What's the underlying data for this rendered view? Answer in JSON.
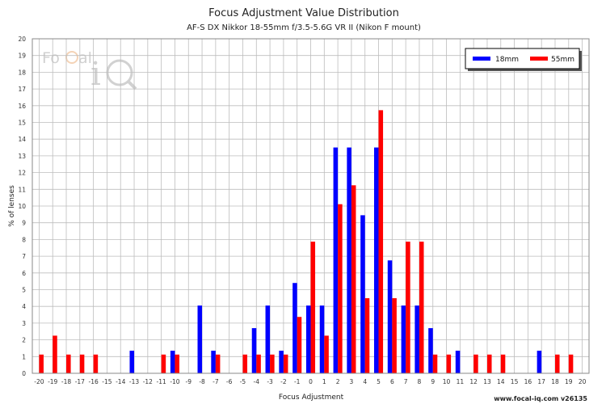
{
  "chart_data": {
    "type": "bar",
    "title": "Focus Adjustment Value Distribution",
    "subtitle": "AF-S DX Nikkor 18-55mm f/3.5-5.6G VR II (Nikon F mount)",
    "xlabel": "Focus Adjustment",
    "ylabel": "% of lenses",
    "ylim": [
      0,
      20
    ],
    "yticks": [
      0,
      1,
      2,
      3,
      4,
      5,
      6,
      7,
      8,
      9,
      10,
      11,
      12,
      13,
      14,
      15,
      16,
      17,
      18,
      19,
      20
    ],
    "categories": [
      "-20",
      "-19",
      "-18",
      "-17",
      "-16",
      "-15",
      "-14",
      "-13",
      "-12",
      "-11",
      "-10",
      "-9",
      "-8",
      "-7",
      "-6",
      "-5",
      "-4",
      "-3",
      "-2",
      "-1",
      "0",
      "1",
      "2",
      "3",
      "4",
      "5",
      "6",
      "7",
      "8",
      "9",
      "10",
      "11",
      "12",
      "13",
      "14",
      "15",
      "16",
      "17",
      "18",
      "19",
      "20"
    ],
    "series": [
      {
        "name": "18mm",
        "color": "#0000ff",
        "values": [
          0,
          0,
          0,
          0,
          0,
          0,
          0,
          1.35,
          0,
          0,
          1.35,
          0,
          4.05,
          1.35,
          0,
          0,
          2.7,
          4.05,
          1.35,
          5.4,
          4.05,
          4.05,
          13.5,
          13.5,
          9.45,
          13.5,
          6.75,
          4.05,
          4.05,
          2.7,
          0,
          1.35,
          0,
          0,
          0,
          0,
          0,
          1.35,
          0,
          0,
          0
        ]
      },
      {
        "name": "55mm",
        "color": "#ff0000",
        "values": [
          1.12,
          2.25,
          1.12,
          1.12,
          1.12,
          0,
          0,
          0,
          0,
          1.12,
          1.12,
          0,
          0,
          1.12,
          0,
          1.12,
          1.12,
          1.12,
          1.12,
          3.37,
          7.87,
          2.25,
          10.11,
          11.24,
          4.49,
          15.73,
          4.49,
          7.87,
          7.87,
          1.12,
          1.12,
          0,
          1.12,
          1.12,
          1.12,
          0,
          0,
          0,
          1.12,
          1.12,
          0
        ]
      }
    ],
    "grid": true,
    "legend_position": "top-right"
  },
  "watermark": {
    "logo_text": "FoCal iQ"
  },
  "footer": "www.focal-iq.com  v26135"
}
